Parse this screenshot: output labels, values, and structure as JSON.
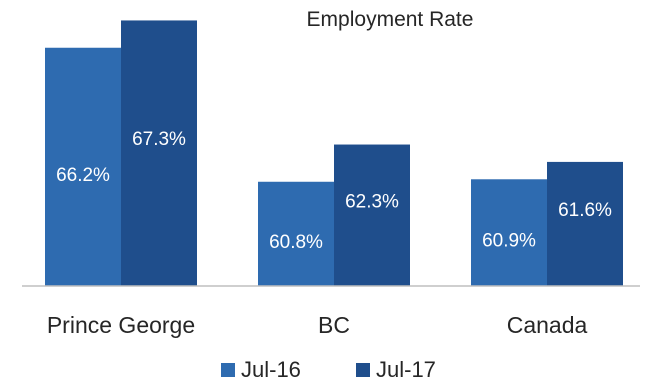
{
  "chart_data": {
    "type": "bar",
    "title": "Employment Rate",
    "xlabel": "",
    "ylabel": "",
    "categories": [
      "Prince George",
      "BC",
      "Canada"
    ],
    "series": [
      {
        "name": "Jul-16",
        "color": "#2e6bb0",
        "values": [
          66.2,
          60.8,
          60.9
        ],
        "labels": [
          "66.2%",
          "60.8%",
          "60.9%"
        ]
      },
      {
        "name": "Jul-17",
        "color": "#1f4e8c",
        "values": [
          67.3,
          62.3,
          61.6
        ],
        "labels": [
          "67.3%",
          "62.3%",
          "61.6%"
        ]
      }
    ],
    "ylim": [
      56.6,
      67.6
    ],
    "grid": false,
    "legend": "bottom"
  }
}
